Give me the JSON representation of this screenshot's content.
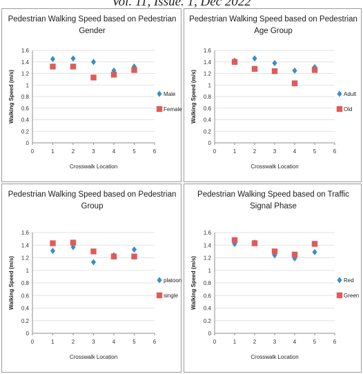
{
  "page": {
    "header": "Vol. 11, Issue. 1, Dec 2022"
  },
  "colors": {
    "diamond": "#3a8fc9",
    "square": "#e05a5a",
    "axis": "#8c8c8c",
    "grid": "#d9d9d9"
  },
  "chart_data": [
    {
      "type": "scatter",
      "title": [
        "Pedestrian Walking Speed based on Pedestrian",
        "Gender"
      ],
      "xlabel": "Crosswalk Location",
      "ylabel": "Walking Speed (m/s)",
      "xlim": [
        0,
        6
      ],
      "ylim": [
        0,
        1.6
      ],
      "xticks": [
        "0",
        "1",
        "2",
        "3",
        "4",
        "5",
        "6"
      ],
      "yticks": [
        "0",
        "0.2",
        "0.4",
        "0.6",
        "0.8",
        "1",
        "1.2",
        "1.4",
        "1.6"
      ],
      "legend_position": "right",
      "series": [
        {
          "name": "Male",
          "marker": "diamond",
          "x": [
            1,
            2,
            3,
            4,
            5
          ],
          "y": [
            1.45,
            1.46,
            1.4,
            1.25,
            1.32
          ]
        },
        {
          "name": "Female",
          "marker": "square",
          "x": [
            1,
            2,
            3,
            4,
            5
          ],
          "y": [
            1.32,
            1.32,
            1.13,
            1.18,
            1.26
          ]
        }
      ]
    },
    {
      "type": "scatter",
      "title": [
        "Pedestrian Walking Speed based on Pedestrian",
        "Age Group"
      ],
      "xlabel": "Crosswalk Location",
      "ylabel": "Walking Speed (m/s)",
      "xlim": [
        0,
        6
      ],
      "ylim": [
        0,
        1.6
      ],
      "xticks": [
        "0",
        "1",
        "2",
        "3",
        "4",
        "5",
        "6"
      ],
      "yticks": [
        "0",
        "0.2",
        "0.4",
        "0.6",
        "0.8",
        "1",
        "1.2",
        "1.4",
        "1.6"
      ],
      "legend_position": "right",
      "series": [
        {
          "name": "Adult",
          "marker": "diamond",
          "x": [
            1,
            2,
            3,
            4,
            5
          ],
          "y": [
            1.42,
            1.46,
            1.38,
            1.25,
            1.31
          ]
        },
        {
          "name": "Old",
          "marker": "square",
          "x": [
            1,
            2,
            3,
            4,
            5
          ],
          "y": [
            1.4,
            1.28,
            1.24,
            1.03,
            1.26
          ]
        }
      ]
    },
    {
      "type": "scatter",
      "title": [
        "Pedestrian Walking Speed based on Pedestrian",
        "Group"
      ],
      "xlabel": "Crosswalk Location",
      "ylabel": "Walking Speed (m/s)",
      "xlim": [
        0,
        6
      ],
      "ylim": [
        0,
        1.6
      ],
      "xticks": [
        "0",
        "1",
        "2",
        "3",
        "4",
        "5",
        "6"
      ],
      "yticks": [
        "0",
        "0.2",
        "0.4",
        "0.6",
        "0.8",
        "1",
        "1.2",
        "1.4",
        "1.6"
      ],
      "legend_position": "right",
      "series": [
        {
          "name": "platoon",
          "marker": "diamond",
          "x": [
            1,
            2,
            3,
            4,
            5
          ],
          "y": [
            1.31,
            1.37,
            1.13,
            1.24,
            1.33
          ]
        },
        {
          "name": "single",
          "marker": "square",
          "x": [
            1,
            2,
            3,
            4,
            5
          ],
          "y": [
            1.43,
            1.44,
            1.3,
            1.22,
            1.22
          ]
        }
      ]
    },
    {
      "type": "scatter",
      "title": [
        "Pedestrian Walking Speed based on Traffic",
        "Signal Phase"
      ],
      "xlabel": "Crosswalk Location",
      "ylabel": "Walking Speed (m/s)",
      "xlim": [
        0,
        6
      ],
      "ylim": [
        0,
        1.6
      ],
      "xticks": [
        "0",
        "1",
        "2",
        "3",
        "4",
        "5",
        "6"
      ],
      "yticks": [
        "0",
        "0.2",
        "0.4",
        "0.6",
        "0.8",
        "1",
        "1.2",
        "1.4",
        "1.6"
      ],
      "legend_position": "right",
      "series": [
        {
          "name": "Red",
          "marker": "diamond",
          "x": [
            1,
            2,
            3,
            4,
            5
          ],
          "y": [
            1.42,
            1.44,
            1.24,
            1.19,
            1.29
          ]
        },
        {
          "name": "Green",
          "marker": "square",
          "x": [
            1,
            2,
            3,
            4,
            5
          ],
          "y": [
            1.48,
            1.43,
            1.3,
            1.25,
            1.42
          ]
        }
      ]
    }
  ]
}
